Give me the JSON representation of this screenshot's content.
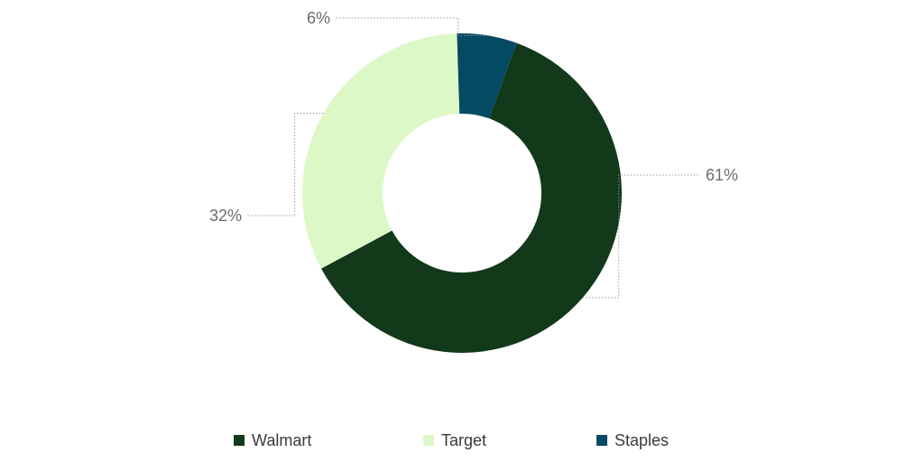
{
  "chart_data": {
    "type": "pie",
    "donut": true,
    "categories": [
      "Walmart",
      "Target",
      "Staples"
    ],
    "values": [
      61,
      32,
      6
    ],
    "value_labels": [
      "61%",
      "32%",
      "6%"
    ],
    "colors": [
      "#12391a",
      "#ddf8c7",
      "#054a63"
    ],
    "legend_position": "bottom",
    "title": ""
  }
}
